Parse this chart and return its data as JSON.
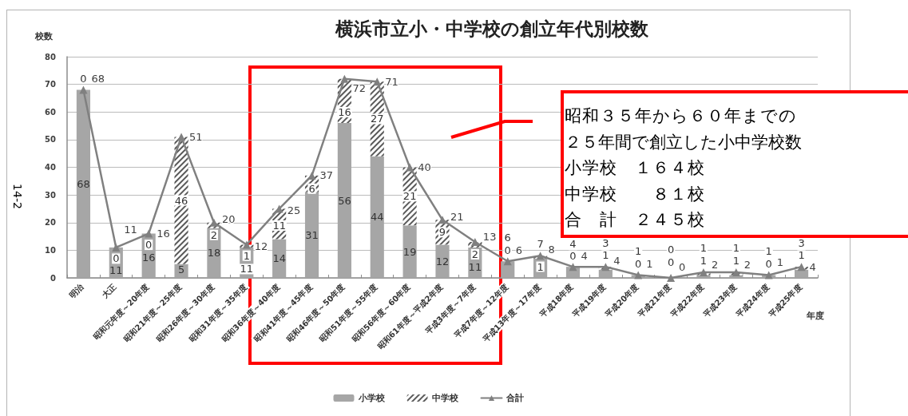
{
  "chart_data": {
    "type": "bar",
    "title": "横浜市立小・中学校の創立年代別校数",
    "ylabel": "校数",
    "xlabel": "年度",
    "categories": [
      "明治",
      "大正",
      "昭和元年度～20年度",
      "昭和21年度～25年度",
      "昭和26年度～30年度",
      "昭和31年度～35年度",
      "昭和36年度～40年度",
      "昭和41年度～45年度",
      "昭和46年度～50年度",
      "昭和51年度～55年度",
      "昭和56年度～60年度",
      "昭和61年度～平成2年度",
      "平成3年度～7年度",
      "平成7年度～12年度",
      "平成13年度～17年度",
      "平成18年度",
      "平成19年度",
      "平成20年度",
      "平成21年度",
      "平成22年度",
      "平成23年度",
      "平成24年度",
      "平成25年度"
    ],
    "series": [
      {
        "name": "小学校",
        "color": "#a6a6a6",
        "values": [
          68,
          11,
          16,
          5,
          18,
          11,
          14,
          31,
          56,
          44,
          19,
          12,
          11,
          6,
          7,
          4,
          3,
          1,
          0,
          1,
          1,
          1,
          3
        ]
      },
      {
        "name": "中学校",
        "color": "#595959",
        "values": [
          0,
          0,
          0,
          46,
          2,
          1,
          11,
          6,
          16,
          27,
          21,
          9,
          2,
          0,
          1,
          0,
          1,
          0,
          0,
          1,
          1,
          0,
          1
        ]
      },
      {
        "name": "合計",
        "type": "line",
        "color": "#808080",
        "values": [
          68,
          11,
          16,
          51,
          20,
          12,
          25,
          37,
          72,
          71,
          40,
          21,
          13,
          6,
          8,
          4,
          4,
          1,
          0,
          2,
          2,
          1,
          4
        ]
      }
    ],
    "stacked": true,
    "ylim": [
      0,
      80
    ],
    "yticks": [
      0,
      10,
      20,
      30,
      40,
      50,
      60,
      70,
      80
    ],
    "grid": "y",
    "legend": "bottom",
    "marker": "triangle",
    "data_labels": true,
    "annotations": [
      "14-2",
      "昭和３５年から６０年までの２５年間で創立した小中学校数",
      "小学校　１６４校",
      "中学校　　８１校",
      "合　計　２４５校"
    ]
  }
}
